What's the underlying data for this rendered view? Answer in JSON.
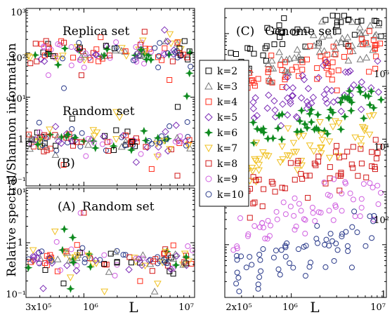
{
  "figure": {
    "ylabel": "Relative spectral/Shannon information",
    "xlabel": "L"
  },
  "legend": {
    "entries": [
      {
        "label": "k=2",
        "marker": "square",
        "color": "#000000"
      },
      {
        "label": "k=3",
        "marker": "triangle",
        "color": "#777777"
      },
      {
        "label": "k=4",
        "marker": "square",
        "color": "#ff2a1a"
      },
      {
        "label": "k=5",
        "marker": "diamond",
        "color": "#7b2bb5"
      },
      {
        "label": "k=6",
        "marker": "star",
        "color": "#0e8a1f"
      },
      {
        "label": "k=7",
        "marker": "tri-down",
        "color": "#f0c020"
      },
      {
        "label": "k=8",
        "marker": "square",
        "color": "#d21818"
      },
      {
        "label": "k=9",
        "marker": "circle",
        "color": "#d060e0"
      },
      {
        "label": "k=10",
        "marker": "circle",
        "color": "#2a3a8a"
      }
    ]
  },
  "chart_data": [
    {
      "type": "scatter",
      "panel_label": "(B)",
      "annotations": [
        "Replica set",
        "Random set"
      ],
      "xscale": "log",
      "yscale": "log",
      "xlim": [
        300000,
        10000000
      ],
      "ylim": [
        0.1,
        1000
      ],
      "xticks": [],
      "yticklabels": [
        "10⁻¹",
        "1",
        "10¹",
        "10²",
        "10³"
      ],
      "series": [
        {
          "group": "Replica set",
          "center": 100,
          "spread": 0.55
        },
        {
          "group": "Random set",
          "center": 1,
          "spread": 0.5
        }
      ]
    },
    {
      "type": "scatter",
      "panel_label": "(A)",
      "annotations": [
        "Random set"
      ],
      "xscale": "log",
      "yscale": "log",
      "xlim": [
        300000,
        10000000
      ],
      "ylim": [
        0.1,
        10
      ],
      "xticklabels": [
        "3x10⁵",
        "10⁶",
        "10⁷"
      ],
      "yticklabels": [
        "10⁻¹",
        "1",
        "10¹"
      ],
      "series": [
        {
          "group": "Random set",
          "center": 0.5,
          "spread": 0.4
        }
      ]
    },
    {
      "type": "scatter",
      "panel_label": "(C)",
      "annotations": [
        "Genome set"
      ],
      "xscale": "log",
      "yscale": "log",
      "xlim": [
        200000,
        10000000
      ],
      "ylim": [
        1,
        300000
      ],
      "xticklabels": [
        "2x10⁵",
        "10⁶",
        "10⁷"
      ],
      "yticklabels": [
        "1",
        "10²",
        "10⁴",
        "10⁶"
      ],
      "series": [
        {
          "name": "k=2",
          "center": 100000
        },
        {
          "name": "k=3",
          "center": 40000
        },
        {
          "name": "k=4",
          "center": 25000
        },
        {
          "name": "k=5",
          "center": 7000
        },
        {
          "name": "k=6",
          "center": 2000
        },
        {
          "name": "k=7",
          "center": 700
        },
        {
          "name": "k=8",
          "center": 200
        },
        {
          "name": "k=9",
          "center": 40
        },
        {
          "name": "k=10",
          "center": 8
        }
      ]
    }
  ]
}
